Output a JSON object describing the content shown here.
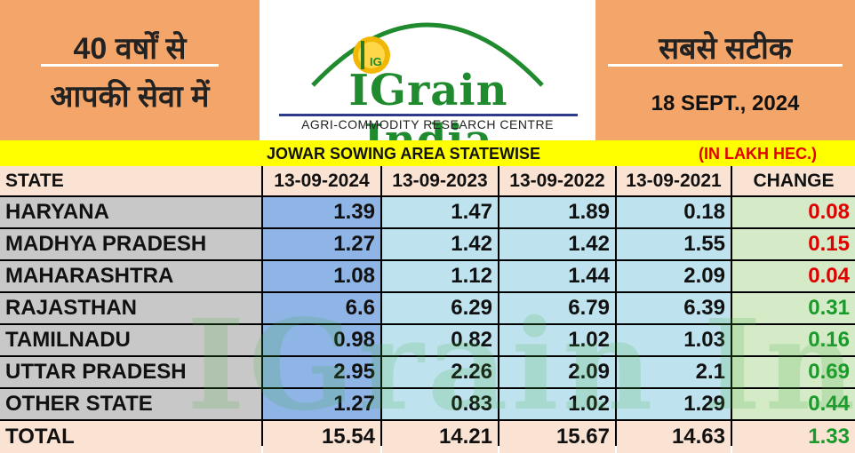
{
  "header": {
    "motto_line1": "40 वर्षों से",
    "motto_line2": "आपकी सेवा में",
    "tagline": "सबसे सटीक",
    "date": "18 SEPT., 2024",
    "brand_name": "IGrain India",
    "brand_subtitle": "AGRI-COMMODITY RESEARCH CENTRE",
    "logo_letters": "IG"
  },
  "report": {
    "title": "JOWAR SOWING AREA STATEWISE",
    "unit": "(IN LAKH HEC.)"
  },
  "table": {
    "headers": [
      "STATE",
      "13-09-2024",
      "13-09-2023",
      "13-09-2022",
      "13-09-2021",
      "CHANGE"
    ],
    "rows": [
      {
        "state": "HARYANA",
        "v2024": "1.39",
        "v2023": "1.47",
        "v2022": "1.89",
        "v2021": "0.18",
        "change": "0.08",
        "change_color": "#e00000"
      },
      {
        "state": "MADHYA PRADESH",
        "v2024": "1.27",
        "v2023": "1.42",
        "v2022": "1.42",
        "v2021": "1.55",
        "change": "0.15",
        "change_color": "#e00000"
      },
      {
        "state": "MAHARASHTRA",
        "v2024": "1.08",
        "v2023": "1.12",
        "v2022": "1.44",
        "v2021": "2.09",
        "change": "0.04",
        "change_color": "#e00000"
      },
      {
        "state": "RAJASTHAN",
        "v2024": "6.6",
        "v2023": "6.29",
        "v2022": "6.79",
        "v2021": "6.39",
        "change": "0.31",
        "change_color": "#1a9a2a"
      },
      {
        "state": "TAMILNADU",
        "v2024": "0.98",
        "v2023": "0.82",
        "v2022": "1.02",
        "v2021": "1.03",
        "change": "0.16",
        "change_color": "#1a9a2a"
      },
      {
        "state": "UTTAR PRADESH",
        "v2024": "2.95",
        "v2023": "2.26",
        "v2022": "2.09",
        "v2021": "2.1",
        "change": "0.69",
        "change_color": "#1a9a2a"
      },
      {
        "state": "OTHER STATE",
        "v2024": "1.27",
        "v2023": "0.83",
        "v2022": "1.02",
        "v2021": "1.29",
        "change": "0.44",
        "change_color": "#1a9a2a"
      }
    ],
    "total": {
      "state": "TOTAL",
      "v2024": "15.54",
      "v2023": "14.21",
      "v2022": "15.67",
      "v2021": "14.63",
      "change": "1.33",
      "change_color": "#1a9a2a"
    }
  },
  "colors": {
    "header_orange": "#f4a56a",
    "title_yellow": "#ffff00",
    "header_row": "#fbe3d3",
    "state_col": "#c8c8c8",
    "col2024": "#8fb4e6",
    "col_other_years": "#bfe3ee",
    "change_col": "#d5ebc8",
    "total_row": "#fbe3d3",
    "decrease": "#e00000",
    "increase": "#1a9a2a"
  },
  "watermark": "IGrain India"
}
